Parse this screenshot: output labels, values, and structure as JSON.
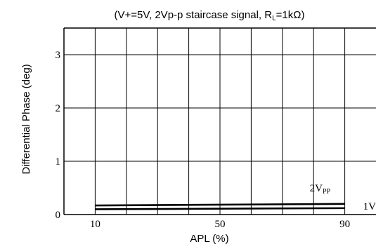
{
  "chart_data": {
    "type": "line",
    "title": "(V+=5V, 2Vp-p staircase signal, R",
    "title_sub": "L",
    "title_tail": "=1kΩ)",
    "xlabel": "APL (%)",
    "ylabel": "Differential Phase (deg)",
    "xlim": [
      0,
      100
    ],
    "ylim": [
      0,
      3.5
    ],
    "x_ticks": [
      10,
      50,
      90
    ],
    "y_ticks": [
      0,
      1,
      2,
      3
    ],
    "grid": true,
    "series": [
      {
        "name": "2V",
        "name_sub": "PP",
        "x": [
          10,
          90
        ],
        "y": [
          0.17,
          0.2
        ],
        "color": "#000000"
      },
      {
        "name": "1V",
        "name_sub": "PP",
        "x": [
          10,
          90
        ],
        "y": [
          0.1,
          0.12
        ],
        "color": "#000000"
      }
    ],
    "colors": {
      "axis": "#000000",
      "grid": "#000000",
      "background": "#ffffff"
    }
  }
}
